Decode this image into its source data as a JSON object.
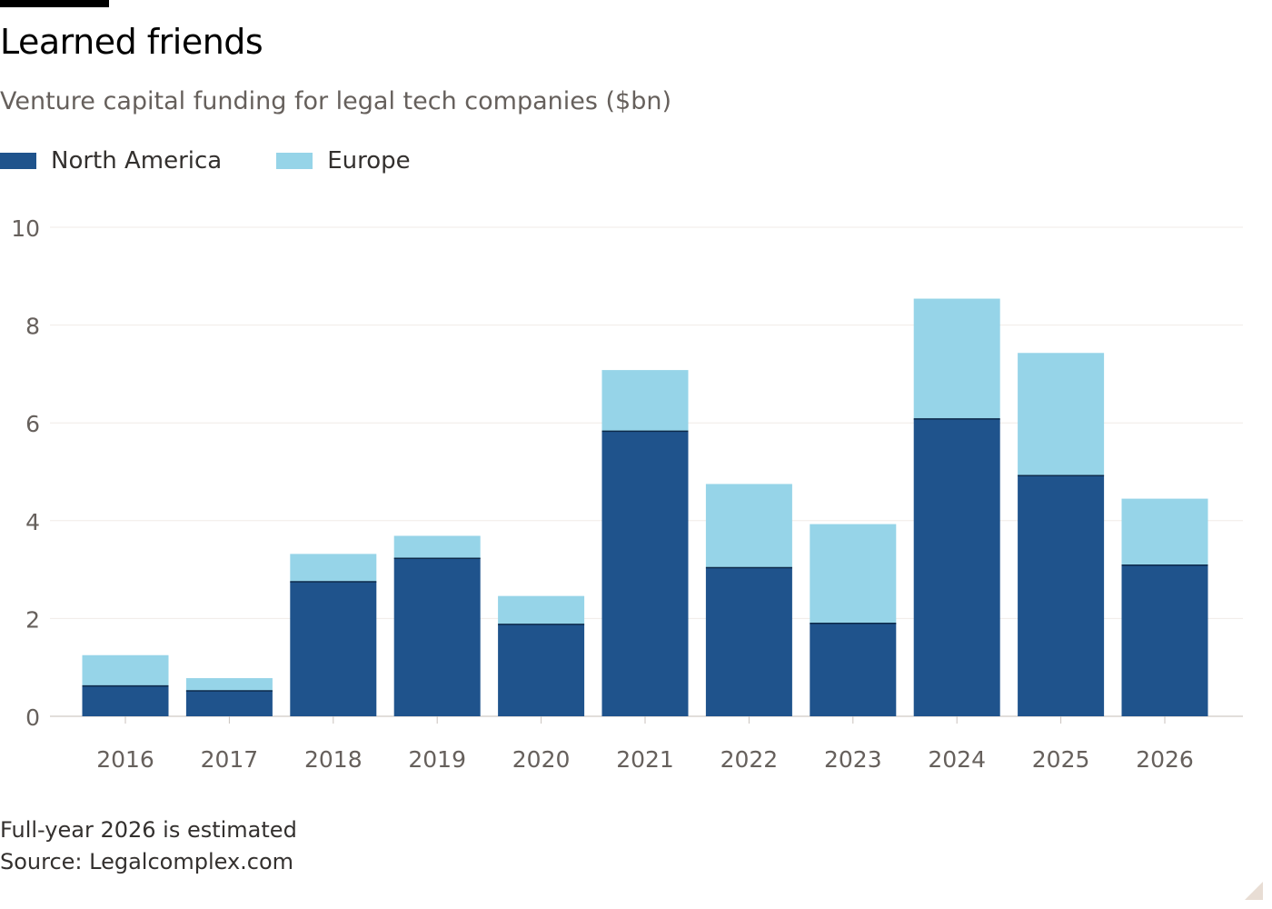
{
  "header": {
    "title": "Learned friends",
    "subtitle": "Venture capital funding for legal tech companies ($bn)"
  },
  "legend": {
    "items": [
      {
        "label": "North America",
        "color": "#1f538c"
      },
      {
        "label": "Europe",
        "color": "#96d4e8"
      }
    ]
  },
  "chart_data": {
    "type": "bar",
    "stacked": true,
    "categories": [
      "2016",
      "2017",
      "2018",
      "2019",
      "2020",
      "2021",
      "2022",
      "2023",
      "2024",
      "2025",
      "2026"
    ],
    "series": [
      {
        "name": "North America",
        "color": "#1f538c",
        "values": [
          0.62,
          0.52,
          2.75,
          3.23,
          1.88,
          5.83,
          3.04,
          1.9,
          6.08,
          4.92,
          3.09
        ]
      },
      {
        "name": "Europe",
        "color": "#96d4e8",
        "values": [
          0.63,
          0.26,
          0.57,
          0.46,
          0.58,
          1.25,
          1.71,
          2.03,
          2.46,
          2.51,
          1.36
        ]
      }
    ],
    "ylim": [
      0,
      10
    ],
    "yticks": [
      "0",
      "2",
      "4",
      "6",
      "8",
      "10"
    ],
    "grid": true,
    "legend_position": "top-left",
    "title": "Learned friends",
    "subtitle": "Venture capital funding for legal tech companies ($bn)",
    "xlabel": "",
    "ylabel": ""
  },
  "footer": {
    "note": "Full-year 2026 is estimated",
    "source": "Source: Legalcomplex.com"
  }
}
